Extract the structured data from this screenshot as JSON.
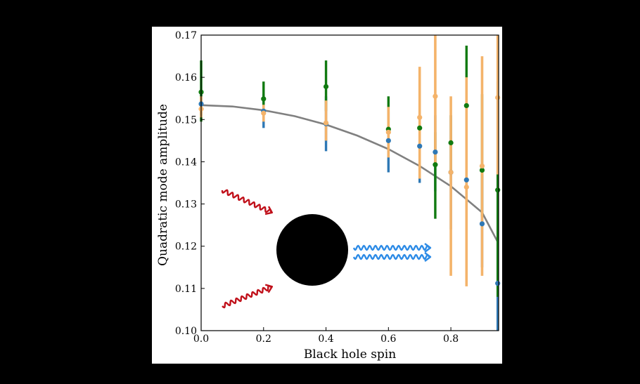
{
  "chart_data": {
    "type": "scatter",
    "xlabel": "Black hole spin",
    "ylabel": "Quadratic mode amplitude",
    "xlim": [
      0.0,
      0.953
    ],
    "ylim": [
      0.1,
      0.17
    ],
    "grid": false,
    "x_ticks": [
      "0.0",
      "0.2",
      "0.4",
      "0.6",
      "0.8"
    ],
    "y_ticks": [
      "0.10",
      "0.11",
      "0.12",
      "0.13",
      "0.14",
      "0.15",
      "0.16",
      "0.17"
    ],
    "colors": {
      "blue": "#2e78b5",
      "green": "#117a11",
      "orange": "#f4b36a",
      "curve": "#808080",
      "red_wave": "#c0101a",
      "blue_wave": "#2d8be6"
    },
    "curve": {
      "x": [
        0.0,
        0.1,
        0.2,
        0.3,
        0.4,
        0.5,
        0.6,
        0.7,
        0.8,
        0.9,
        0.95
      ],
      "y": [
        0.1534,
        0.1531,
        0.1522,
        0.1508,
        0.1488,
        0.1462,
        0.143,
        0.139,
        0.1342,
        0.128,
        0.121
      ]
    },
    "series": [
      {
        "color": "blue",
        "points": [
          {
            "x": 0.0,
            "y": 0.1537,
            "lo": 0.151,
            "hi": 0.156
          },
          {
            "x": 0.2,
            "y": 0.152,
            "lo": 0.148,
            "hi": 0.156
          },
          {
            "x": 0.4,
            "y": 0.149,
            "lo": 0.1425,
            "hi": 0.1555
          },
          {
            "x": 0.6,
            "y": 0.145,
            "lo": 0.1375,
            "hi": 0.152
          },
          {
            "x": 0.7,
            "y": 0.1437,
            "lo": 0.135,
            "hi": 0.152
          },
          {
            "x": 0.75,
            "y": 0.1423,
            "lo": 0.133,
            "hi": 0.151
          },
          {
            "x": 0.8,
            "y": 0.1375,
            "lo": 0.124,
            "hi": 0.151
          },
          {
            "x": 0.85,
            "y": 0.1357,
            "lo": 0.12,
            "hi": 0.151
          },
          {
            "x": 0.9,
            "y": 0.1253,
            "lo": 0.115,
            "hi": 0.137
          },
          {
            "x": 0.95,
            "y": 0.1112,
            "lo": 0.1,
            "hi": 0.122
          }
        ]
      },
      {
        "color": "green",
        "points": [
          {
            "x": 0.0,
            "y": 0.1565,
            "lo": 0.1495,
            "hi": 0.164
          },
          {
            "x": 0.2,
            "y": 0.1549,
            "lo": 0.1515,
            "hi": 0.159
          },
          {
            "x": 0.4,
            "y": 0.1578,
            "lo": 0.152,
            "hi": 0.164
          },
          {
            "x": 0.6,
            "y": 0.1477,
            "lo": 0.143,
            "hi": 0.1555
          },
          {
            "x": 0.7,
            "y": 0.148,
            "lo": 0.142,
            "hi": 0.154
          },
          {
            "x": 0.75,
            "y": 0.1393,
            "lo": 0.1265,
            "hi": 0.147
          },
          {
            "x": 0.8,
            "y": 0.1445,
            "lo": 0.138,
            "hi": 0.151
          },
          {
            "x": 0.85,
            "y": 0.1533,
            "lo": 0.136,
            "hi": 0.1675
          },
          {
            "x": 0.9,
            "y": 0.138,
            "lo": 0.127,
            "hi": 0.156
          },
          {
            "x": 0.95,
            "y": 0.1333,
            "lo": 0.108,
            "hi": 0.159
          }
        ]
      },
      {
        "color": "orange",
        "points": [
          {
            "x": 0.0,
            "y": 0.1525,
            "lo": 0.1505,
            "hi": 0.1555
          },
          {
            "x": 0.2,
            "y": 0.1515,
            "lo": 0.1495,
            "hi": 0.1535
          },
          {
            "x": 0.4,
            "y": 0.1492,
            "lo": 0.145,
            "hi": 0.1545
          },
          {
            "x": 0.6,
            "y": 0.147,
            "lo": 0.141,
            "hi": 0.153
          },
          {
            "x": 0.7,
            "y": 0.1505,
            "lo": 0.136,
            "hi": 0.1625
          },
          {
            "x": 0.75,
            "y": 0.1555,
            "lo": 0.139,
            "hi": 0.17
          },
          {
            "x": 0.8,
            "y": 0.1375,
            "lo": 0.113,
            "hi": 0.1555
          },
          {
            "x": 0.85,
            "y": 0.134,
            "lo": 0.1105,
            "hi": 0.16
          },
          {
            "x": 0.9,
            "y": 0.139,
            "lo": 0.113,
            "hi": 0.165
          },
          {
            "x": 0.95,
            "y": 0.1552,
            "lo": 0.137,
            "hi": 0.17
          }
        ]
      }
    ]
  }
}
